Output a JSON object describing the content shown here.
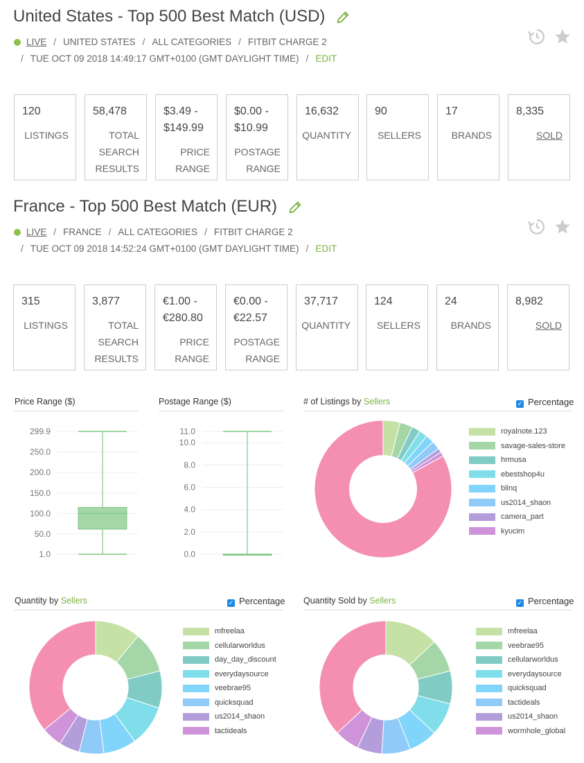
{
  "markets": [
    {
      "title": "United States - Top 500 Best Match (USD)",
      "live": "LIVE",
      "country": "UNITED STATES",
      "category": "ALL CATEGORIES",
      "query": "FITBIT CHARGE 2",
      "timestamp": "TUE OCT 09 2018 14:49:17 GMT+0100 (GMT DAYLIGHT TIME)",
      "edit": "EDIT",
      "stats": [
        {
          "value": "120",
          "label": "LISTINGS"
        },
        {
          "value": "58,478",
          "label": "TOTAL SEARCH RESULTS"
        },
        {
          "value": "$3.49 - $149.99",
          "label": "PRICE RANGE"
        },
        {
          "value": "$0.00 - $10.99",
          "label": "POSTAGE RANGE"
        },
        {
          "value": "16,632",
          "label": "QUANTITY"
        },
        {
          "value": "90",
          "label": "SELLERS"
        },
        {
          "value": "17",
          "label": "BRANDS"
        },
        {
          "value": "8,335",
          "label": "SOLD"
        }
      ]
    },
    {
      "title": "France - Top 500 Best Match (EUR)",
      "live": "LIVE",
      "country": "FRANCE",
      "category": "ALL CATEGORIES",
      "query": "FITBIT CHARGE 2",
      "timestamp": "TUE OCT 09 2018 14:52:24 GMT+0100 (GMT DAYLIGHT TIME)",
      "edit": "EDIT",
      "stats": [
        {
          "value": "315",
          "label": "LISTINGS"
        },
        {
          "value": "3,877",
          "label": "TOTAL SEARCH RESULTS"
        },
        {
          "value": "€1.00 - €280.80",
          "label": "PRICE RANGE"
        },
        {
          "value": "€0.00 - €22.57",
          "label": "POSTAGE RANGE"
        },
        {
          "value": "37,717",
          "label": "QUANTITY"
        },
        {
          "value": "124",
          "label": "SELLERS"
        },
        {
          "value": "24",
          "label": "BRANDS"
        },
        {
          "value": "8,982",
          "label": "SOLD"
        }
      ]
    }
  ],
  "percentage_label": "Percentage",
  "colors": {
    "accent_green": "#7cb342",
    "live_dot": "#8bc34a",
    "box_fill": "#a5d6a7",
    "box_stroke": "#81c784",
    "checkbox_blue": "#1e88e5",
    "palette": [
      "#c5e1a5",
      "#a5d6a7",
      "#80cbc4",
      "#80deea",
      "#81d4fa",
      "#90caf9",
      "#b39ddb",
      "#ce93d8",
      "#f48fb1"
    ]
  },
  "chart_data": [
    {
      "type": "box",
      "title": "Price Range ($)",
      "y_ticks": [
        "299.9",
        "250.0",
        "200.0",
        "150.0",
        "100.0",
        "50.0",
        "1.0"
      ],
      "ylim": [
        1.0,
        299.9
      ],
      "min": 1.0,
      "q1": 62,
      "median": 100,
      "q3": 115,
      "max": 299.9
    },
    {
      "type": "box",
      "title": "Postage Range ($)",
      "y_ticks": [
        "11.0",
        "10.0",
        "8.0",
        "6.0",
        "4.0",
        "2.0",
        "0.0"
      ],
      "ylim": [
        0.0,
        11.0
      ],
      "min": 0.0,
      "q1": 0.0,
      "median": 0.0,
      "q3": 0.0,
      "max": 11.0
    },
    {
      "type": "pie",
      "title_prefix": "# of Listings by ",
      "title_highlight": "Sellers",
      "legend": [
        "royalnote.123",
        "savage-sales-store",
        "hrmusa",
        "ebestshop4u",
        "blinq",
        "us2014_shaon",
        "camera_part",
        "kyucim"
      ],
      "values": [
        4,
        3,
        2,
        2,
        2,
        2,
        1,
        1,
        83
      ]
    },
    {
      "type": "pie",
      "title_prefix": "Quantity by ",
      "title_highlight": "Sellers",
      "legend": [
        "mfreelaa",
        "cellularworldus",
        "day_day_discount",
        "everydaysource",
        "veebrae95",
        "quicksquad",
        "us2014_shaon",
        "tactideals"
      ],
      "values": [
        11,
        10,
        9,
        10,
        8,
        6,
        5,
        5,
        36
      ]
    },
    {
      "type": "pie",
      "title_prefix": "Quantity Sold by ",
      "title_highlight": "Sellers",
      "legend": [
        "mfreelaa",
        "veebrae95",
        "cellularworldus",
        "everydaysource",
        "quicksquad",
        "tactideals",
        "us2014_shaon",
        "wormhole_global"
      ],
      "values": [
        13,
        8,
        8,
        8,
        7,
        7,
        6,
        6,
        37
      ]
    }
  ]
}
